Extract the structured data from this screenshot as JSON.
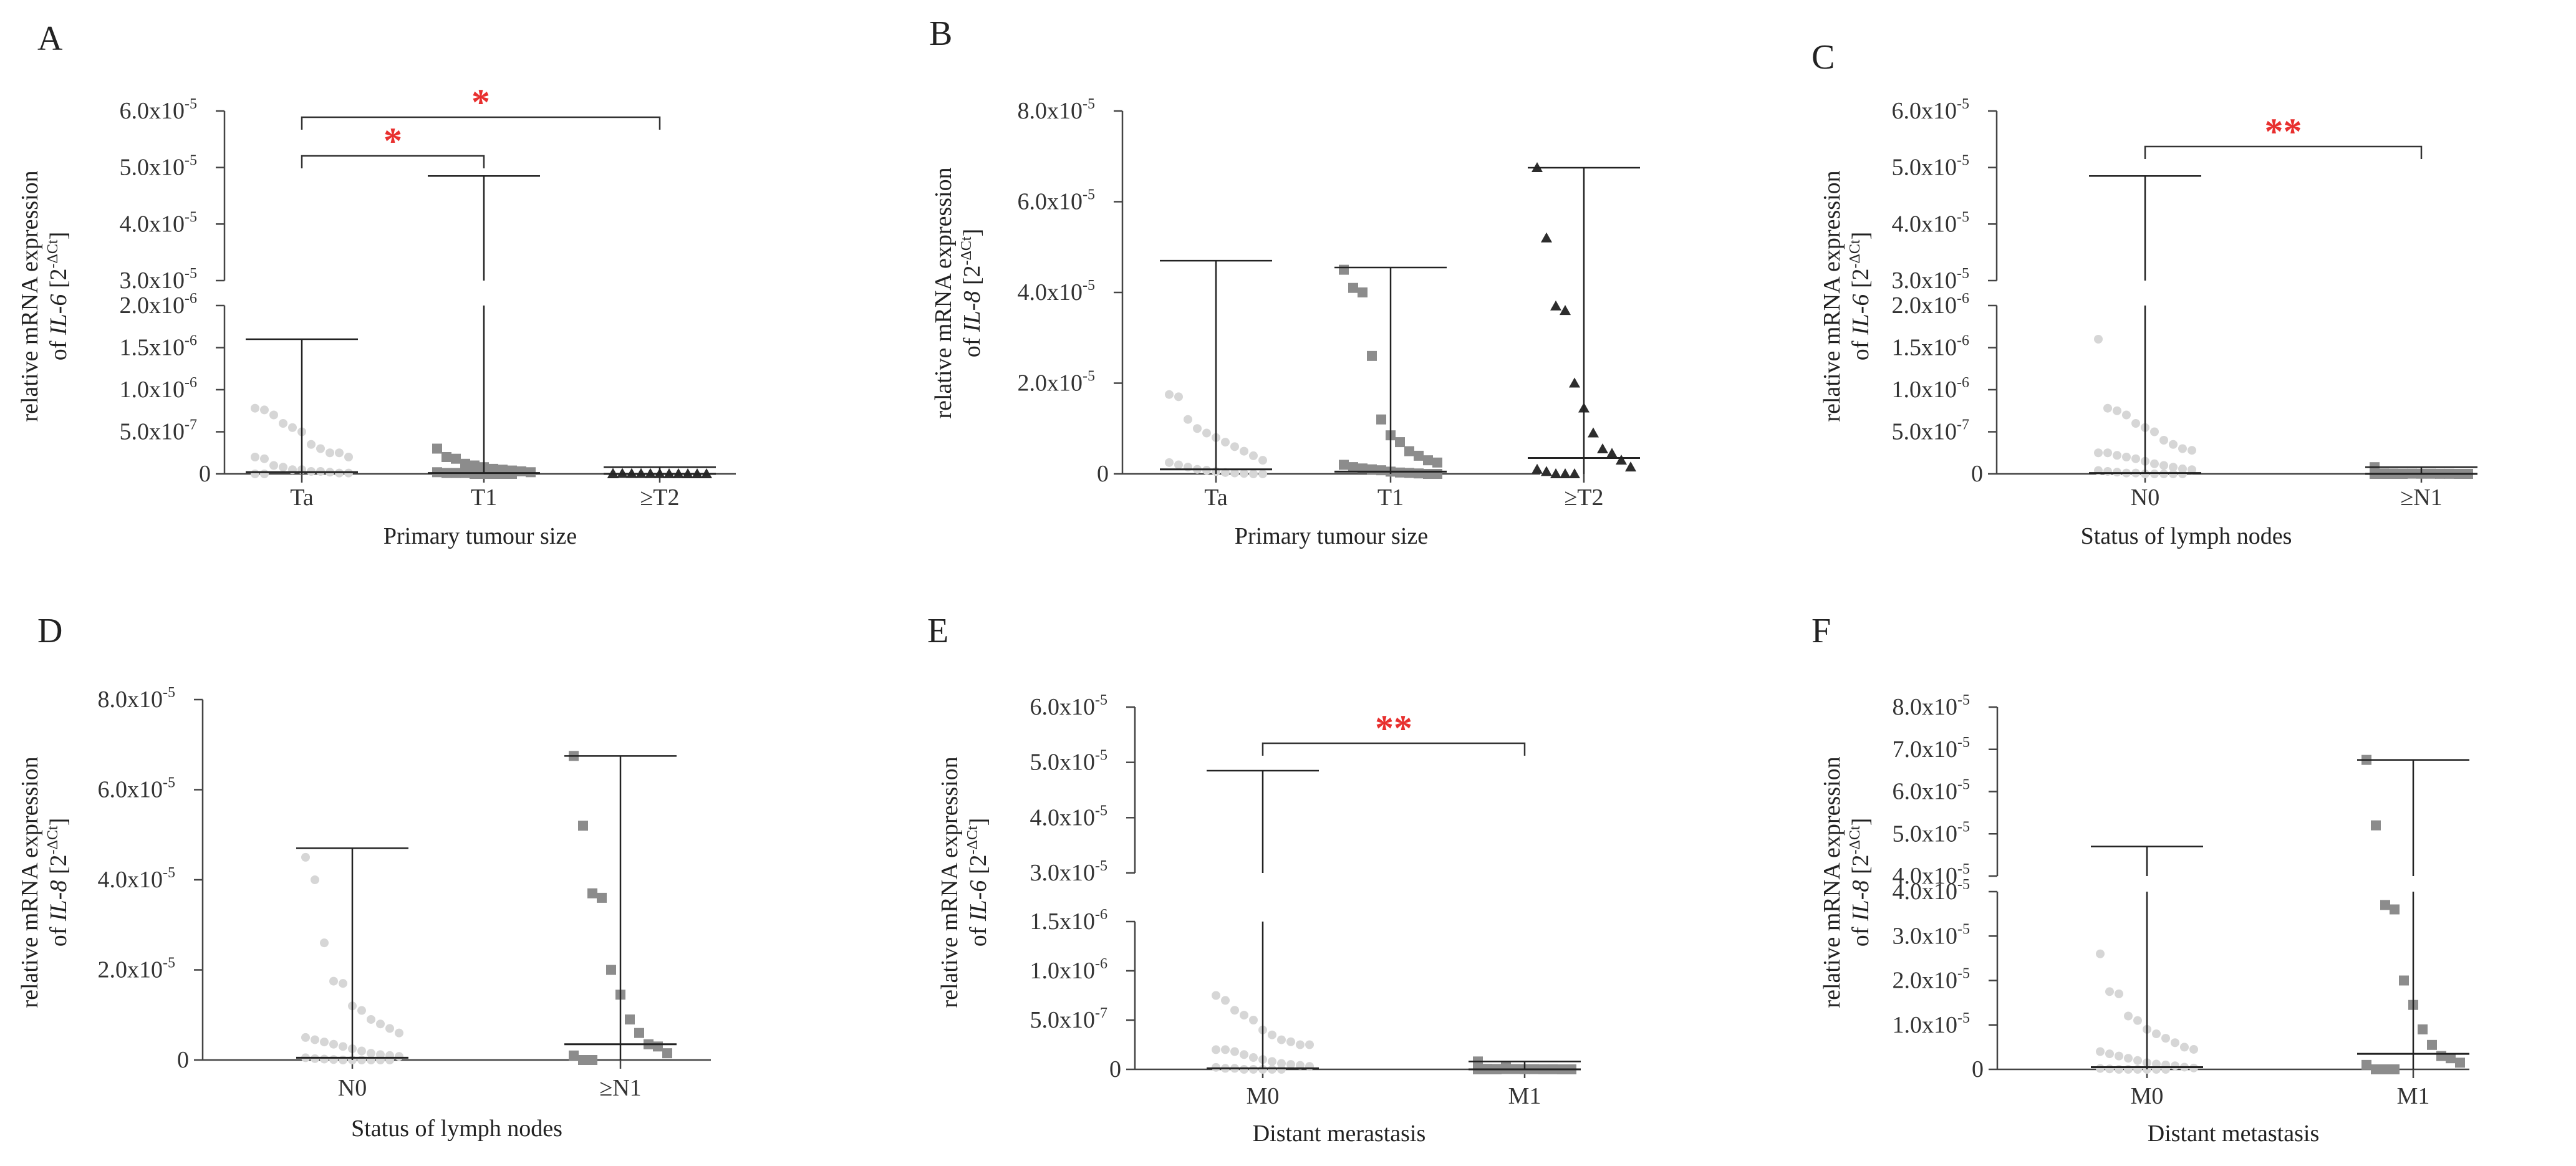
{
  "chart_data": [
    {
      "panel": "A",
      "type": "scatter",
      "ylabel_main": "relative mRNA expression",
      "ylabel_prefix": "of ",
      "ylabel_gene": "IL-6",
      "ylabel_unit": " [2",
      "ylabel_exp": "-ΔCt",
      "ylabel_close": "]",
      "xlabel": "Primary tumour size",
      "categories": [
        "Ta",
        "T1",
        "≥T2"
      ],
      "y_broken": true,
      "segments": [
        {
          "range": [
            0,
            2e-06
          ],
          "ticks": [
            0,
            5e-07,
            1e-06,
            1.5e-06,
            2e-06
          ],
          "tick_labels": [
            "0",
            "5.0x10",
            "1.0x10",
            "1.5x10",
            "2.0x10"
          ],
          "tick_exps": [
            "",
            "-7",
            "-6",
            "-6",
            "-6"
          ]
        },
        {
          "range": [
            3e-05,
            6e-05
          ],
          "ticks": [
            3e-05,
            4e-05,
            5e-05,
            6e-05
          ],
          "tick_labels": [
            "3.0x10",
            "4.0x10",
            "5.0x10",
            "6.0x10"
          ],
          "tick_exps": [
            "-5",
            "-5",
            "-5",
            "-5"
          ]
        }
      ],
      "groups": [
        {
          "name": "Ta",
          "marker": "circle",
          "color": "#d6d6d6",
          "median": 2e-08,
          "max": 1.6e-06,
          "min": 0,
          "points": [
            7.8e-07,
            7.6e-07,
            7e-07,
            6e-07,
            5.5e-07,
            5e-07,
            3.5e-07,
            3e-07,
            2.5e-07,
            2.5e-07,
            2e-07,
            2e-07,
            1.8e-07,
            1e-07,
            8e-08,
            5e-08,
            5e-08,
            3e-08,
            3e-08,
            2e-08,
            1e-08,
            1e-08,
            0,
            0
          ]
        },
        {
          "name": "T1",
          "marker": "square",
          "color": "#8c8c8c",
          "median": 1e-08,
          "max": 4.85e-05,
          "min": 0,
          "points": [
            3e-07,
            2e-07,
            1.8e-07,
            1.2e-07,
            1e-07,
            8e-08,
            6e-08,
            5e-08,
            4e-08,
            3e-08,
            2e-08,
            2e-08,
            1e-08,
            1e-08,
            1e-08,
            0,
            0,
            0,
            0,
            0
          ]
        },
        {
          "name": "≥T2",
          "marker": "triangle",
          "color": "#2d2d2d",
          "median": 0,
          "max": 8e-08,
          "min": 0,
          "points": [
            5e-09,
            5e-09,
            3e-09,
            3e-09,
            2e-09,
            2e-09,
            1e-09,
            1e-09,
            0,
            0,
            0,
            0
          ]
        }
      ],
      "significance": [
        {
          "from": "Ta",
          "to": "T1",
          "label": "*"
        },
        {
          "from": "Ta",
          "to": "≥T2",
          "label": "*"
        }
      ]
    },
    {
      "panel": "B",
      "type": "scatter",
      "ylabel_main": "relative mRNA expression",
      "ylabel_prefix": "of ",
      "ylabel_gene": "IL-8",
      "ylabel_unit": " [2",
      "ylabel_exp": "-ΔCt",
      "ylabel_close": "]",
      "xlabel": "Primary tumour size",
      "categories": [
        "Ta",
        "T1",
        "≥T2"
      ],
      "y_broken": false,
      "segments": [
        {
          "range": [
            0,
            8e-05
          ],
          "ticks": [
            0,
            2e-05,
            4e-05,
            6e-05,
            8e-05
          ],
          "tick_labels": [
            "0",
            "2.0x10",
            "4.0x10",
            "6.0x10",
            "8.0x10"
          ],
          "tick_exps": [
            "",
            "-5",
            "-5",
            "-5",
            "-5"
          ]
        }
      ],
      "groups": [
        {
          "name": "Ta",
          "marker": "circle",
          "color": "#d6d6d6",
          "median": 1e-06,
          "max": 4.7e-05,
          "min": 0,
          "points": [
            1.75e-05,
            1.7e-05,
            1.2e-05,
            1e-05,
            9e-06,
            8e-06,
            7e-06,
            6e-06,
            5e-06,
            4e-06,
            3e-06,
            2.5e-06,
            2e-06,
            1.5e-06,
            1e-06,
            8e-07,
            5e-07,
            3e-07,
            2e-07,
            1e-07,
            0,
            0
          ]
        },
        {
          "name": "T1",
          "marker": "square",
          "color": "#8c8c8c",
          "median": 5e-07,
          "max": 4.55e-05,
          "min": 0,
          "points": [
            4.5e-05,
            4.1e-05,
            4e-05,
            2.6e-05,
            1.2e-05,
            8.5e-06,
            7e-06,
            5e-06,
            4e-06,
            3e-06,
            2.5e-06,
            2e-06,
            1.5e-06,
            1.2e-06,
            1e-06,
            8e-07,
            5e-07,
            3e-07,
            2e-07,
            1e-07,
            0,
            0
          ]
        },
        {
          "name": "≥T2",
          "marker": "triangle",
          "color": "#2d2d2d",
          "median": 3.5e-06,
          "max": 6.75e-05,
          "min": 0,
          "points": [
            6.75e-05,
            5.2e-05,
            3.7e-05,
            3.6e-05,
            2e-05,
            1.45e-05,
            9e-06,
            5.5e-06,
            4.5e-06,
            3e-06,
            1.5e-06,
            1e-06,
            5e-07,
            0,
            0,
            0
          ]
        }
      ],
      "significance": []
    },
    {
      "panel": "C",
      "type": "scatter",
      "ylabel_main": "relative mRNA expression",
      "ylabel_prefix": "of ",
      "ylabel_gene": "IL-6",
      "ylabel_unit": " [2",
      "ylabel_exp": "-ΔCt",
      "ylabel_close": "]",
      "xlabel": "Status of lymph nodes",
      "categories": [
        "N0",
        "≥N1"
      ],
      "y_broken": true,
      "segments": [
        {
          "range": [
            0,
            2e-06
          ],
          "ticks": [
            0,
            5e-07,
            1e-06,
            1.5e-06,
            2e-06
          ],
          "tick_labels": [
            "0",
            "5.0x10",
            "1.0x10",
            "1.5x10",
            "2.0x10"
          ],
          "tick_exps": [
            "",
            "-7",
            "-6",
            "-6",
            "-6"
          ]
        },
        {
          "range": [
            3e-05,
            6e-05
          ],
          "ticks": [
            3e-05,
            4e-05,
            5e-05,
            6e-05
          ],
          "tick_labels": [
            "3.0x10",
            "4.0x10",
            "5.0x10",
            "6.0x10"
          ],
          "tick_exps": [
            "-5",
            "-5",
            "-5",
            "-5"
          ]
        }
      ],
      "groups": [
        {
          "name": "N0",
          "marker": "circle",
          "color": "#d6d6d6",
          "median": 1e-08,
          "max": 4.85e-05,
          "min": 0,
          "points": [
            1.6e-06,
            7.8e-07,
            7.5e-07,
            7e-07,
            6e-07,
            5.5e-07,
            5e-07,
            4e-07,
            3.5e-07,
            3e-07,
            2.8e-07,
            2.5e-07,
            2.5e-07,
            2.2e-07,
            2e-07,
            1.8e-07,
            1.5e-07,
            1.2e-07,
            1e-07,
            8e-08,
            6e-08,
            5e-08,
            4e-08,
            3e-08,
            2e-08,
            1e-08,
            1e-08,
            0,
            0,
            0,
            0,
            0
          ]
        },
        {
          "name": "≥N1",
          "marker": "square",
          "color": "#8c8c8c",
          "median": 0,
          "max": 8e-08,
          "min": 0,
          "points": [
            8e-08,
            5e-09,
            4e-09,
            3e-09,
            3e-09,
            2e-09,
            2e-09,
            1e-09,
            1e-09,
            0,
            0,
            0,
            0,
            0,
            0
          ]
        }
      ],
      "significance": [
        {
          "from": "N0",
          "to": "≥N1",
          "label": "**"
        }
      ]
    },
    {
      "panel": "D",
      "type": "scatter",
      "ylabel_main": "relative mRNA expression",
      "ylabel_prefix": "of ",
      "ylabel_gene": "IL-8",
      "ylabel_unit": " [2",
      "ylabel_exp": "-ΔCt",
      "ylabel_close": "]",
      "xlabel": "Status of lymph nodes",
      "categories": [
        "N0",
        "≥N1"
      ],
      "y_broken": false,
      "segments": [
        {
          "range": [
            0,
            8e-05
          ],
          "ticks": [
            0,
            2e-05,
            4e-05,
            6e-05,
            8e-05
          ],
          "tick_labels": [
            "0",
            "2.0x10",
            "4.0x10",
            "6.0x10",
            "8.0x10"
          ],
          "tick_exps": [
            "",
            "-5",
            "-5",
            "-5",
            "-5"
          ]
        }
      ],
      "groups": [
        {
          "name": "N0",
          "marker": "circle",
          "color": "#d6d6d6",
          "median": 5e-07,
          "max": 4.7e-05,
          "min": 0,
          "points": [
            4.5e-05,
            4e-05,
            2.6e-05,
            1.75e-05,
            1.7e-05,
            1.2e-05,
            1.1e-05,
            9e-06,
            8e-06,
            7e-06,
            6e-06,
            5e-06,
            4.5e-06,
            4e-06,
            3.5e-06,
            3e-06,
            2.5e-06,
            2e-06,
            1.5e-06,
            1.2e-06,
            1e-06,
            8e-07,
            5e-07,
            3e-07,
            2e-07,
            1e-07,
            0,
            0,
            0,
            0,
            0,
            0
          ]
        },
        {
          "name": "≥N1",
          "marker": "square",
          "color": "#8c8c8c",
          "median": 3.5e-06,
          "max": 6.75e-05,
          "min": 0,
          "points": [
            6.75e-05,
            5.2e-05,
            3.7e-05,
            3.6e-05,
            2e-05,
            1.45e-05,
            9e-06,
            6e-06,
            3.5e-06,
            3e-06,
            1.5e-06,
            1e-06,
            0,
            0
          ]
        }
      ],
      "significance": []
    },
    {
      "panel": "E",
      "type": "scatter",
      "ylabel_main": "relative mRNA expression",
      "ylabel_prefix": "of ",
      "ylabel_gene": "IL-6",
      "ylabel_unit": " [2",
      "ylabel_exp": "-ΔCt",
      "ylabel_close": "]",
      "xlabel": "Distant merastasis",
      "categories": [
        "M0",
        "M1"
      ],
      "y_broken": true,
      "segments": [
        {
          "range": [
            0,
            1.5e-06
          ],
          "ticks": [
            0,
            5e-07,
            1e-06,
            1.5e-06
          ],
          "tick_labels": [
            "0",
            "5.0x10",
            "1.0x10",
            "1.5x10"
          ],
          "tick_exps": [
            "",
            "-7",
            "-6",
            "-6"
          ]
        },
        {
          "range": [
            3e-05,
            6e-05
          ],
          "ticks": [
            3e-05,
            4e-05,
            5e-05,
            6e-05
          ],
          "tick_labels": [
            "3.0x10",
            "4.0x10",
            "5.0x10",
            "6.0x10"
          ],
          "tick_exps": [
            "-5",
            "-5",
            "-5",
            "-5"
          ]
        }
      ],
      "groups": [
        {
          "name": "M0",
          "marker": "circle",
          "color": "#d6d6d6",
          "median": 1e-08,
          "max": 4.85e-05,
          "min": 0,
          "points": [
            7.5e-07,
            7e-07,
            6e-07,
            5.5e-07,
            5e-07,
            4e-07,
            3.5e-07,
            3e-07,
            2.8e-07,
            2.5e-07,
            2.5e-07,
            2e-07,
            2e-07,
            1.8e-07,
            1.5e-07,
            1.2e-07,
            1e-07,
            8e-08,
            6e-08,
            5e-08,
            4e-08,
            3e-08,
            2e-08,
            1e-08,
            1e-08,
            0,
            0,
            0,
            0,
            0
          ]
        },
        {
          "name": "M1",
          "marker": "square",
          "color": "#8c8c8c",
          "median": 0,
          "max": 8e-08,
          "min": 0,
          "points": [
            8e-08,
            5e-09,
            4e-09,
            3e-09,
            3e-09,
            2e-09,
            2e-09,
            1e-09,
            1e-09,
            0,
            0,
            0,
            0,
            0,
            3e-08
          ]
        }
      ],
      "significance": [
        {
          "from": "M0",
          "to": "M1",
          "label": "**"
        }
      ]
    },
    {
      "panel": "F",
      "type": "scatter",
      "ylabel_main": "relative mRNA expression",
      "ylabel_prefix": "of ",
      "ylabel_gene": "IL-8",
      "ylabel_unit": " [2",
      "ylabel_exp": "-ΔCt",
      "ylabel_close": "]",
      "xlabel": "Distant metastasis",
      "categories": [
        "M0",
        "M1"
      ],
      "y_broken": true,
      "segments": [
        {
          "range": [
            0,
            4e-05
          ],
          "ticks": [
            0,
            1e-05,
            2e-05,
            3e-05,
            4e-05
          ],
          "tick_labels": [
            "0",
            "1.0x10",
            "2.0x10",
            "3.0x10",
            "4.0x10"
          ],
          "tick_exps": [
            "",
            "-5",
            "-5",
            "-5",
            "-5"
          ]
        },
        {
          "range": [
            4e-05,
            8e-05
          ],
          "ticks": [
            4e-05,
            5e-05,
            6e-05,
            7e-05,
            8e-05
          ],
          "tick_labels": [
            "4.0x10",
            "5.0x10",
            "6.0x10",
            "7.0x10",
            "8.0x10"
          ],
          "tick_exps": [
            "-5",
            "-5",
            "-5",
            "-5",
            "-5"
          ]
        }
      ],
      "groups": [
        {
          "name": "M0",
          "marker": "circle",
          "color": "#d6d6d6",
          "median": 5e-07,
          "max": 4.7e-05,
          "min": 0,
          "points": [
            2.6e-05,
            1.75e-05,
            1.7e-05,
            1.2e-05,
            1.1e-05,
            9e-06,
            8e-06,
            7e-06,
            6e-06,
            5e-06,
            4.5e-06,
            4e-06,
            3.5e-06,
            3e-06,
            2.5e-06,
            2e-06,
            1.5e-06,
            1.2e-06,
            1e-06,
            8e-07,
            5e-07,
            3e-07,
            2e-07,
            1e-07,
            0,
            0,
            0,
            0,
            0,
            0
          ]
        },
        {
          "name": "M1",
          "marker": "square",
          "color": "#8c8c8c",
          "median": 3.5e-06,
          "max": 6.75e-05,
          "min": 0,
          "points": [
            6.75e-05,
            5.2e-05,
            3.7e-05,
            3.6e-05,
            2e-05,
            1.45e-05,
            9e-06,
            5.5e-06,
            3e-06,
            2.5e-06,
            1.5e-06,
            1e-06,
            0,
            0,
            0
          ]
        }
      ],
      "significance": []
    }
  ],
  "style": {
    "significance_color": "#e8302f",
    "axis_color": "#444444",
    "whisker_color": "#222222"
  }
}
